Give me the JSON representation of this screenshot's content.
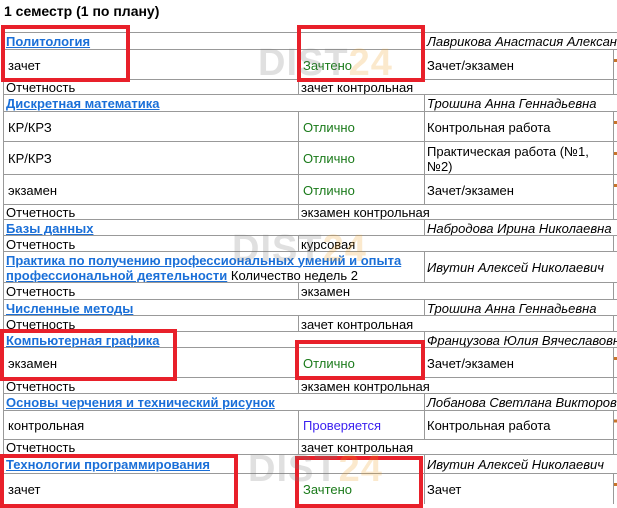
{
  "title": "1 семестр (1 по плану)",
  "watermark": {
    "part1": "DIST",
    "part2": "24"
  },
  "colors": {
    "link": "#1a6fd8",
    "passed": "#1a7a1a",
    "checking": "#3a1ff0",
    "highlight": "#e8202a"
  },
  "rows": [
    {
      "type": "subject",
      "subject": "Политология",
      "teacher": "Лаврикова Анастасия Александровна"
    },
    {
      "type": "grade",
      "kind": "зачет",
      "result": "Зачтено",
      "status": "passed",
      "form": "Зачет/экзамен"
    },
    {
      "type": "report",
      "label": "Отчетность",
      "value": "зачет контрольная"
    },
    {
      "type": "subject",
      "subject": "Дискретная математика",
      "teacher": "Трошина Анна Геннадьевна"
    },
    {
      "type": "grade",
      "kind": "КР/КРЗ",
      "result": "Отлично",
      "status": "passed",
      "form": "Контрольная работа"
    },
    {
      "type": "grade",
      "kind": "КР/КРЗ",
      "result": "Отлично",
      "status": "passed",
      "form": "Практическая работа (№1, №2)"
    },
    {
      "type": "grade",
      "kind": "экзамен",
      "result": "Отлично",
      "status": "passed",
      "form": "Зачет/экзамен"
    },
    {
      "type": "report",
      "label": "Отчетность",
      "value": "экзамен контрольная"
    },
    {
      "type": "subject",
      "subject": "Базы данных",
      "teacher": "Набродова Ирина Николаевна"
    },
    {
      "type": "report",
      "label": "Отчетность",
      "value": "курсовая"
    },
    {
      "type": "subject",
      "subject": "Практика по получению профессиональных умений и опыта профессиональной деятельности",
      "extra": "Количество недель 2",
      "teacher": "Ивутин Алексей Николаевич"
    },
    {
      "type": "report",
      "label": "Отчетность",
      "value": "экзамен"
    },
    {
      "type": "subject",
      "subject": "Численные методы",
      "teacher": "Трошина Анна Геннадьевна"
    },
    {
      "type": "report",
      "label": "Отчетность",
      "value": "зачет контрольная"
    },
    {
      "type": "subject",
      "subject": "Компьютерная графика",
      "teacher": "Французова Юлия Вячеславовна"
    },
    {
      "type": "grade",
      "kind": "экзамен",
      "result": "Отлично",
      "status": "passed",
      "form": "Зачет/экзамен"
    },
    {
      "type": "report",
      "label": "Отчетность",
      "value": "экзамен контрольная"
    },
    {
      "type": "subject",
      "subject": "Основы черчения и технический рисунок",
      "teacher": "Лобанова Светлана Викторовна"
    },
    {
      "type": "grade",
      "kind": "контрольная",
      "result": "Проверяется",
      "status": "checking",
      "form": "Контрольная работа"
    },
    {
      "type": "report",
      "label": "Отчетность",
      "value": "зачет контрольная"
    },
    {
      "type": "subject",
      "subject": "Технологии программирования",
      "teacher": "Ивутин Алексей Николаевич"
    },
    {
      "type": "grade",
      "kind": "зачет",
      "result": "Зачтено",
      "status": "passed",
      "form": "Зачет"
    }
  ]
}
